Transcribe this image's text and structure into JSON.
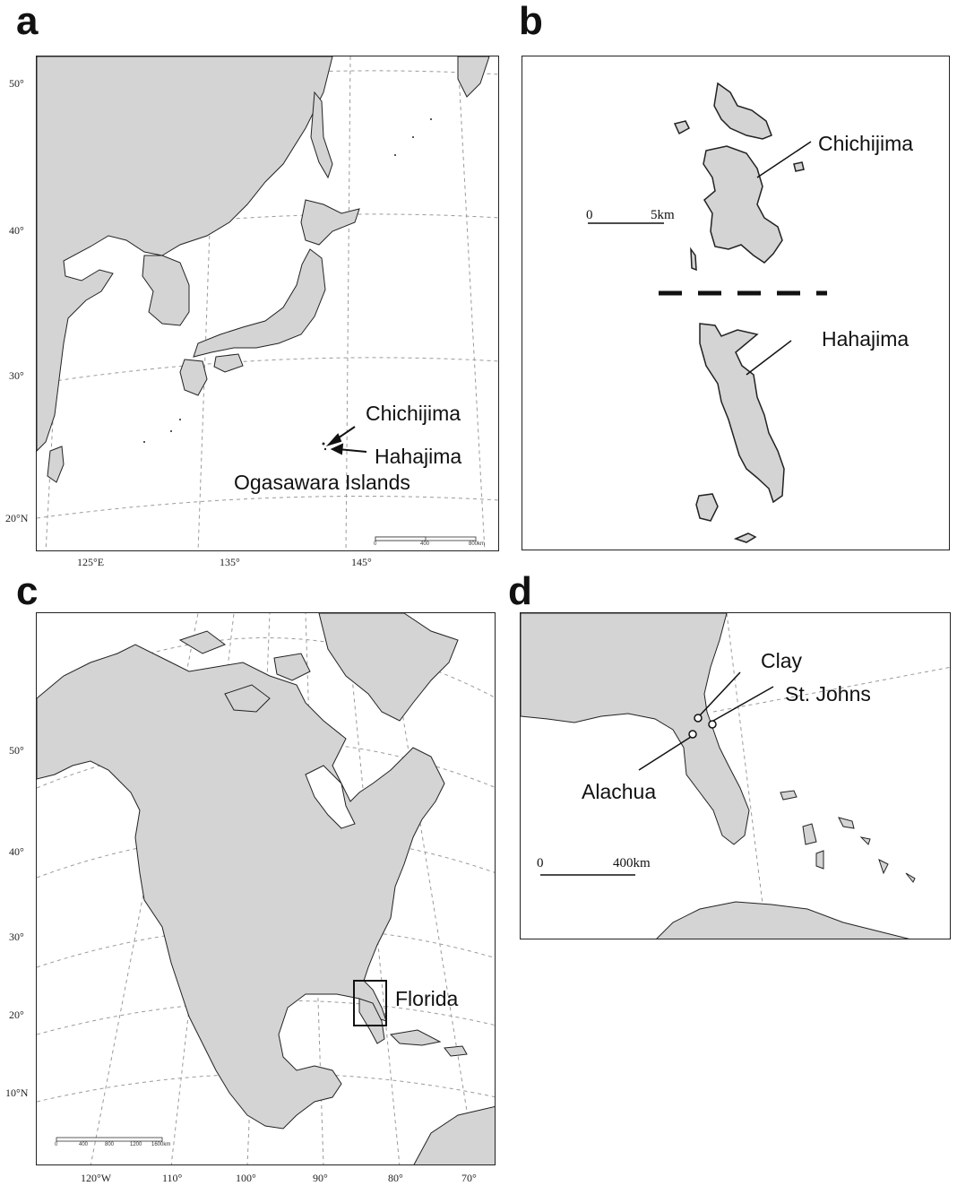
{
  "panels": {
    "a": {
      "letter": "a",
      "lat_labels": [
        "50°",
        "40°",
        "30°",
        "20°N"
      ],
      "lon_labels": [
        "125°E",
        "135°",
        "145°"
      ],
      "labels": {
        "chichijima": "Chichijima",
        "hahajima": "Hahajima",
        "group": "Ogasawara Islands"
      },
      "scale": [
        "0",
        "400",
        "800km"
      ]
    },
    "b": {
      "letter": "b",
      "labels": {
        "chichijima": "Chichijima",
        "hahajima": "Hahajima"
      },
      "scale": [
        "0",
        "5km"
      ]
    },
    "c": {
      "letter": "c",
      "lat_labels": [
        "50°",
        "40°",
        "30°",
        "20°",
        "10°N"
      ],
      "lon_labels": [
        "120°W",
        "110°",
        "100°",
        "90°",
        "80°",
        "70°"
      ],
      "labels": {
        "florida": "Florida"
      },
      "scale": [
        "0",
        "400",
        "800",
        "1200",
        "1600km"
      ]
    },
    "d": {
      "letter": "d",
      "labels": {
        "clay": "Clay",
        "st_johns": "St. Johns",
        "alachua": "Alachua"
      },
      "scale": [
        "0",
        "400km"
      ]
    }
  },
  "colors": {
    "land": "#d4d4d4",
    "water": "#ffffff",
    "outline": "#222222",
    "graticule": "#9a9a9a"
  }
}
